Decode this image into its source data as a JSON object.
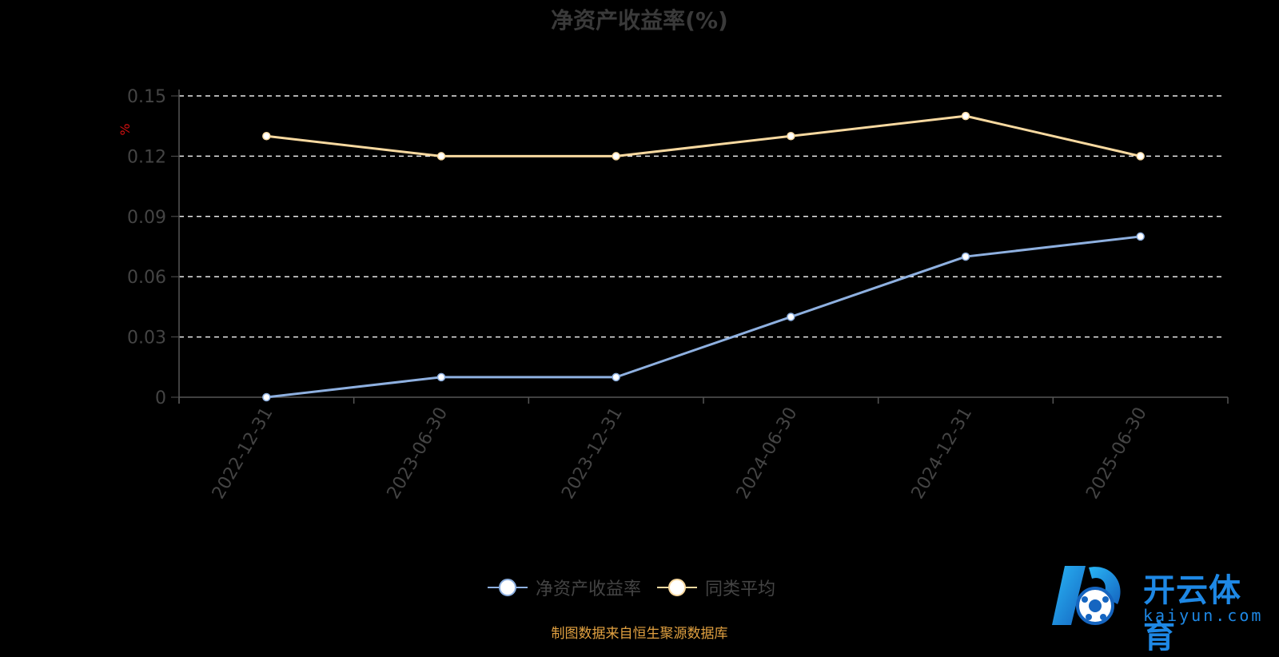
{
  "title": "净资产收益率(%)",
  "y_unit": "%",
  "legend": [
    {
      "label": "净资产收益率",
      "color": "#8eb0e0"
    },
    {
      "label": "同类平均",
      "color": "#f8d9a0"
    }
  ],
  "source": "制图数据来自恒生聚源数据库",
  "logo": {
    "cn": "开云体育",
    "en": "kaiyun.com"
  },
  "chart_data": {
    "type": "line",
    "title": "净资产收益率(%)",
    "ylabel": "%",
    "x": [
      "2022-12-31",
      "2023-06-30",
      "2023-12-31",
      "2024-06-30",
      "2024-12-31",
      "2025-06-30"
    ],
    "yticks": [
      "0",
      "0.03",
      "0.06",
      "0.09",
      "0.12",
      "0.15"
    ],
    "ylim": [
      0,
      0.15
    ],
    "grid": true,
    "legend_position": "bottom",
    "series": [
      {
        "name": "净资产收益率",
        "color": "#8eb0e0",
        "values": [
          0,
          0.01,
          0.01,
          0.04,
          0.07,
          0.08
        ]
      },
      {
        "name": "同类平均",
        "color": "#f8d9a0",
        "values": [
          0.13,
          0.12,
          0.12,
          0.13,
          0.14,
          0.12
        ]
      }
    ]
  }
}
